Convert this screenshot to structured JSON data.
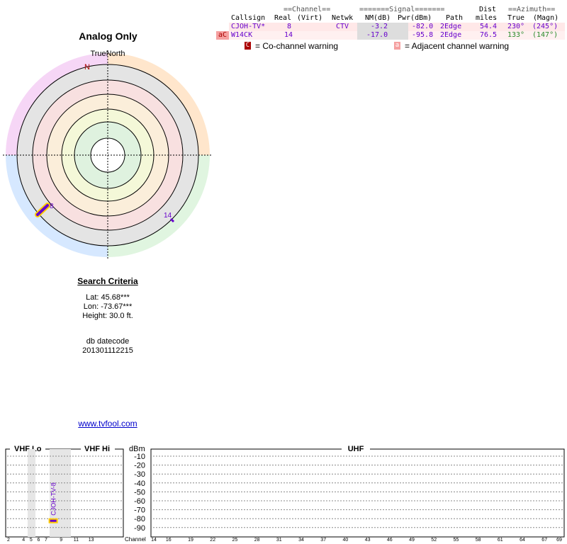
{
  "page": {
    "title": "Analog Only",
    "link": "www.tvfool.com"
  },
  "polar": {
    "north_label": "N",
    "top_label": "TrueNorth",
    "stations": [
      {
        "channel": "8",
        "azimuth_true": 230,
        "color": "#6600cc"
      },
      {
        "channel": "14",
        "azimuth_true": 133,
        "color": "#6600cc"
      }
    ]
  },
  "criteria": {
    "heading": "Search Criteria",
    "lat": "Lat: 45.68***",
    "lon": "Lon: -73.67***",
    "height": "Height: 30.0 ft.",
    "db_label": "db datecode",
    "db_value": "201301112215"
  },
  "table": {
    "group_headers": {
      "channel": "==Channel==",
      "signal": "=======Signal=======",
      "dist": "Dist",
      "azimuth": "==Azimuth=="
    },
    "columns": [
      "Callsign",
      "Real",
      "(Virt)",
      "Netwk",
      "NM(dB)",
      "Pwr(dBm)",
      "Path",
      "miles",
      "True",
      "(Magn)"
    ],
    "rows": [
      {
        "warn": "",
        "callsign": "CJOH-TV*",
        "real": "8",
        "virt": "",
        "netwk": "CTV",
        "nm": "-3.2",
        "pwr": "-82.0",
        "path": "2Edge",
        "dist": "54.4",
        "true": "230°",
        "magn": "(245°)",
        "az_color": "#6600cc",
        "row_bg": "#ffe8e8"
      },
      {
        "warn": "aC",
        "callsign": "W14CK",
        "real": "14",
        "virt": "",
        "netwk": "",
        "nm": "-17.0",
        "pwr": "-95.8",
        "path": "2Edge",
        "dist": "76.5",
        "true": "133°",
        "magn": "(147°)",
        "az_color": "#2a8a2a",
        "row_bg": "#fff0f0"
      }
    ],
    "legend": {
      "co_box": "C",
      "co_text": "= Co-channel warning",
      "adj_box": "a",
      "adj_text": "= Adjacent channel warning"
    }
  },
  "spectrum": {
    "vhf_lo_label": "VHF Lo",
    "vhf_hi_label": "VHF Hi",
    "uhf_label": "UHF",
    "dbm_label": "dBm",
    "channel_axis_label": "Channel",
    "dbm_ticks": [
      "-10",
      "-20",
      "-30",
      "-40",
      "-50",
      "-60",
      "-70",
      "-80",
      "-90"
    ],
    "vhf_ticks": [
      "2",
      "4",
      "5",
      "6",
      "7",
      "9",
      "11",
      "13"
    ],
    "uhf_ticks": [
      "14",
      "16",
      "19",
      "22",
      "25",
      "28",
      "31",
      "34",
      "37",
      "40",
      "43",
      "46",
      "49",
      "52",
      "55",
      "58",
      "61",
      "64",
      "67",
      "69"
    ],
    "markers": [
      {
        "callsign": "CJOH-TV-8",
        "channel": 8,
        "power_dbm": -82.0
      }
    ]
  }
}
